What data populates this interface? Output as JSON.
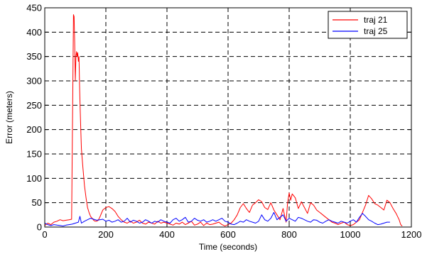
{
  "chart_data": {
    "type": "line",
    "title": "",
    "xlabel": "Time (seconds)",
    "ylabel": "Error (meters)",
    "xlim": [
      0,
      1200
    ],
    "ylim": [
      0,
      450
    ],
    "xticks": [
      0,
      200,
      400,
      600,
      800,
      1000,
      1200
    ],
    "yticks": [
      0,
      50,
      100,
      150,
      200,
      250,
      300,
      350,
      400,
      450
    ],
    "grid": true,
    "legend_position": "top-right",
    "series": [
      {
        "name": "traj 21",
        "color": "#ff0000",
        "x": [
          0,
          10,
          20,
          30,
          40,
          50,
          60,
          70,
          80,
          88,
          92,
          94,
          96,
          98,
          100,
          102,
          104,
          106,
          108,
          110,
          112,
          114,
          116,
          118,
          120,
          125,
          130,
          135,
          140,
          145,
          150,
          155,
          160,
          165,
          170,
          175,
          180,
          190,
          200,
          210,
          220,
          230,
          240,
          250,
          260,
          270,
          280,
          290,
          300,
          310,
          320,
          330,
          340,
          350,
          360,
          370,
          380,
          390,
          400,
          410,
          420,
          430,
          440,
          450,
          460,
          470,
          480,
          490,
          500,
          510,
          520,
          530,
          540,
          550,
          560,
          570,
          580,
          590,
          600,
          610,
          620,
          630,
          640,
          650,
          660,
          670,
          680,
          690,
          700,
          710,
          720,
          730,
          740,
          750,
          760,
          770,
          780,
          790,
          795,
          800,
          805,
          810,
          820,
          830,
          840,
          850,
          860,
          870,
          880,
          890,
          900,
          910,
          920,
          930,
          940,
          950,
          960,
          970,
          980,
          990,
          1000,
          1010,
          1020,
          1030,
          1040,
          1050,
          1060,
          1070,
          1080,
          1090,
          1100,
          1110,
          1120,
          1130,
          1140,
          1150,
          1160,
          1165,
          1170
        ],
        "y": [
          3,
          8,
          5,
          10,
          12,
          15,
          13,
          14,
          15,
          16,
          300,
          436,
          432,
          380,
          300,
          350,
          360,
          350,
          358,
          340,
          350,
          290,
          240,
          200,
          160,
          120,
          85,
          60,
          40,
          30,
          22,
          18,
          14,
          12,
          12,
          14,
          20,
          35,
          40,
          42,
          38,
          32,
          22,
          15,
          10,
          8,
          12,
          8,
          10,
          14,
          8,
          6,
          10,
          8,
          6,
          12,
          8,
          10,
          8,
          6,
          4,
          8,
          6,
          10,
          5,
          8,
          12,
          4,
          6,
          10,
          3,
          8,
          5,
          6,
          8,
          10,
          5,
          2,
          5,
          8,
          15,
          25,
          40,
          48,
          38,
          30,
          45,
          50,
          56,
          52,
          40,
          36,
          50,
          35,
          25,
          15,
          38,
          10,
          50,
          70,
          55,
          68,
          60,
          38,
          52,
          40,
          28,
          50,
          45,
          35,
          30,
          25,
          20,
          15,
          10,
          8,
          5,
          8,
          10,
          5,
          3,
          5,
          10,
          15,
          30,
          45,
          65,
          58,
          48,
          45,
          40,
          35,
          55,
          50,
          38,
          28,
          15,
          5,
          2
        ]
      },
      {
        "name": "traj 25",
        "color": "#0000ff",
        "x": [
          0,
          10,
          20,
          30,
          40,
          50,
          60,
          70,
          80,
          90,
          100,
          110,
          115,
          120,
          130,
          140,
          150,
          160,
          170,
          180,
          190,
          200,
          210,
          220,
          230,
          240,
          250,
          260,
          270,
          280,
          290,
          300,
          310,
          320,
          330,
          340,
          350,
          360,
          370,
          380,
          390,
          400,
          410,
          420,
          430,
          440,
          450,
          460,
          470,
          480,
          490,
          500,
          510,
          520,
          530,
          540,
          550,
          560,
          570,
          580,
          590,
          600,
          610,
          620,
          630,
          640,
          650,
          660,
          670,
          680,
          690,
          700,
          710,
          720,
          730,
          740,
          750,
          760,
          770,
          780,
          790,
          800,
          810,
          820,
          830,
          840,
          850,
          860,
          870,
          880,
          890,
          900,
          910,
          920,
          930,
          940,
          950,
          960,
          970,
          980,
          990,
          1000,
          1010,
          1020,
          1030,
          1040,
          1050,
          1060,
          1070,
          1080,
          1090,
          1100,
          1110,
          1120,
          1130
        ],
        "y": [
          8,
          5,
          3,
          5,
          4,
          3,
          2,
          4,
          5,
          6,
          8,
          10,
          22,
          8,
          12,
          15,
          18,
          16,
          14,
          15,
          16,
          12,
          14,
          10,
          12,
          15,
          10,
          12,
          18,
          10,
          14,
          12,
          8,
          10,
          15,
          12,
          8,
          12,
          10,
          15,
          12,
          10,
          8,
          15,
          18,
          12,
          15,
          20,
          10,
          12,
          18,
          14,
          12,
          15,
          10,
          12,
          15,
          12,
          15,
          18,
          12,
          10,
          6,
          5,
          8,
          12,
          10,
          15,
          12,
          10,
          8,
          12,
          25,
          15,
          12,
          18,
          30,
          15,
          20,
          25,
          12,
          18,
          15,
          12,
          20,
          18,
          15,
          12,
          10,
          15,
          14,
          10,
          8,
          12,
          15,
          12,
          10,
          8,
          12,
          10,
          8,
          12,
          15,
          10,
          20,
          28,
          22,
          15,
          12,
          8,
          5,
          6,
          8,
          10,
          10
        ]
      }
    ]
  }
}
